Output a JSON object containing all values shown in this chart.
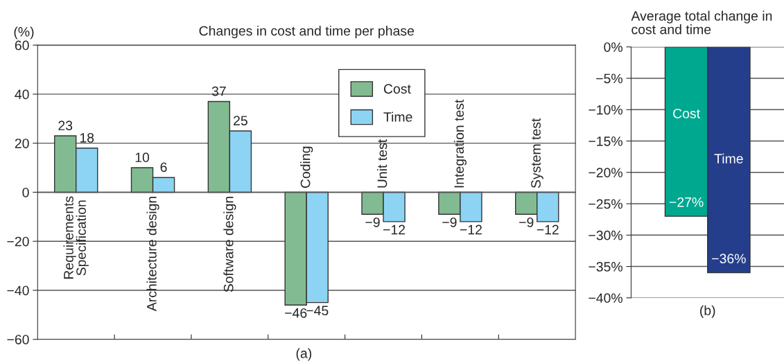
{
  "chart_data": [
    {
      "type": "bar",
      "title": "Changes in cost and time per phase",
      "ylabel": "(%)",
      "annotations": [
        "(a)"
      ],
      "categories": [
        "Requirements\nSpecification",
        "Architecture design",
        "Software design",
        "Coding",
        "Unit test",
        "Integration test",
        "System test"
      ],
      "series": [
        {
          "name": "Cost",
          "color": "#82bb91",
          "values": [
            23,
            10,
            37,
            -46,
            -9,
            -9,
            -9
          ],
          "value_labels": [
            "23",
            "10",
            "37",
            "−46",
            "−9",
            "−9",
            "−9"
          ]
        },
        {
          "name": "Time",
          "color": "#8dd3f4",
          "values": [
            18,
            6,
            25,
            -45,
            -12,
            -12,
            -12
          ],
          "value_labels": [
            "18",
            "6",
            "25",
            "−45",
            "−12",
            "−12",
            "−12"
          ]
        }
      ],
      "ylim": [
        -60,
        60
      ],
      "yticks": [
        {
          "value": -60,
          "label": "−60"
        },
        {
          "value": -40,
          "label": "−40"
        },
        {
          "value": -20,
          "label": "−20"
        },
        0,
        20,
        40,
        60
      ],
      "grid": "y",
      "legend": "top"
    },
    {
      "type": "bar",
      "title": "Average total change in\ncost and time",
      "annotations": [
        "(b)"
      ],
      "categories": [
        "Cost",
        "Time"
      ],
      "values": [
        -27,
        -36
      ],
      "colors": [
        "#00a890",
        "#253e8c"
      ],
      "value_labels": [
        "−27%",
        "−36%"
      ],
      "ylim": [
        -40,
        0
      ],
      "yticks": [
        {
          "value": 0,
          "label": "0%"
        },
        {
          "value": -5,
          "label": "−5%"
        },
        {
          "value": -10,
          "label": "−10%"
        },
        {
          "value": -15,
          "label": "−15%"
        },
        {
          "value": -20,
          "label": "−20%"
        },
        {
          "value": -25,
          "label": "−25%"
        },
        {
          "value": -30,
          "label": "−30%"
        },
        {
          "value": -35,
          "label": "−35%"
        },
        {
          "value": -40,
          "label": "−40%"
        }
      ],
      "grid": "y"
    }
  ]
}
